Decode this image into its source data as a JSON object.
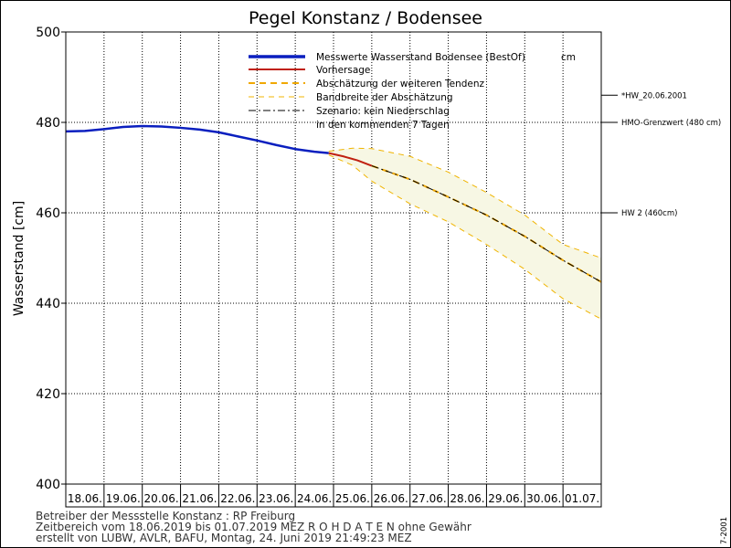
{
  "chart_data": {
    "type": "line",
    "title": "Pegel Konstanz / Bodensee",
    "xlabel": "",
    "ylabel": "Wasserstand [cm]",
    "ylim": [
      400,
      500
    ],
    "yticks": [
      400,
      420,
      440,
      460,
      480,
      500
    ],
    "xlim": [
      "2019-06-18 00:00",
      "2019-07-02 00:00"
    ],
    "x_tick_labels": [
      "18.06.",
      "19.06.",
      "20.06.",
      "21.06.",
      "22.06.",
      "23.06.",
      "24.06.",
      "25.06.",
      "26.06.",
      "27.06.",
      "28.06.",
      "29.06.",
      "30.06.",
      "01.07."
    ],
    "grid": true,
    "legend_placement": "top-center",
    "legend": [
      "Messwerte Wasserstand Bodensee  (BestOf)",
      "Vorhersage",
      "Abschätzung der weiteren Tendenz",
      "Bandbreite der Abschätzung",
      "Szenario: kein Niederschlag",
      "in den kommenden 7 Tagen"
    ],
    "legend_unit": "cm",
    "series": [
      {
        "name": "Messwerte Wasserstand Bodensee  (BestOf)",
        "color": "#0a1fbf",
        "x": [
          "2019-06-18 00:00",
          "2019-06-18 12:00",
          "2019-06-19 00:00",
          "2019-06-19 12:00",
          "2019-06-20 00:00",
          "2019-06-20 12:00",
          "2019-06-21 00:00",
          "2019-06-21 12:00",
          "2019-06-22 00:00",
          "2019-06-22 12:00",
          "2019-06-23 00:00",
          "2019-06-23 12:00",
          "2019-06-24 00:00",
          "2019-06-24 12:00",
          "2019-06-24 21:00"
        ],
        "y": [
          478.0,
          478.1,
          478.5,
          479.0,
          479.2,
          479.1,
          478.8,
          478.4,
          477.8,
          476.9,
          476.0,
          475.0,
          474.1,
          473.5,
          473.2
        ]
      },
      {
        "name": "Vorhersage",
        "color": "#c02010",
        "x": [
          "2019-06-24 21:00",
          "2019-06-25 06:00",
          "2019-06-25 15:00",
          "2019-06-26 00:00"
        ],
        "y": [
          473.2,
          472.5,
          471.6,
          470.4
        ]
      },
      {
        "name": "Abschätzung der weiteren Tendenz",
        "color": "#f0a800",
        "x": [
          "2019-06-26 00:00",
          "2019-06-27 00:00",
          "2019-06-28 00:00",
          "2019-06-29 00:00",
          "2019-06-30 00:00",
          "2019-07-01 00:00",
          "2019-07-02 00:00"
        ],
        "y": [
          470.4,
          467.4,
          463.5,
          459.5,
          454.8,
          449.5,
          444.7
        ]
      },
      {
        "name": "Szenario: kein Niederschlag",
        "color": "#000000",
        "x": [
          "2019-06-26 00:00",
          "2019-06-27 00:00",
          "2019-06-28 00:00",
          "2019-06-29 00:00",
          "2019-06-30 00:00",
          "2019-07-01 00:00",
          "2019-07-02 00:00"
        ],
        "y": [
          470.4,
          467.4,
          463.5,
          459.5,
          454.8,
          449.5,
          444.7
        ]
      }
    ],
    "band": {
      "name": "Bandbreite der Abschätzung",
      "color": "#f0b400",
      "fill": "#f7f7e4",
      "x": [
        "2019-06-24 21:00",
        "2019-06-25 12:00",
        "2019-06-26 00:00",
        "2019-06-27 00:00",
        "2019-06-28 00:00",
        "2019-06-29 00:00",
        "2019-06-30 00:00",
        "2019-07-01 00:00",
        "2019-07-02 00:00"
      ],
      "upper": [
        473.6,
        474.3,
        474.2,
        472.5,
        469.0,
        464.5,
        459.5,
        453.0,
        450.0
      ],
      "lower": [
        472.8,
        470.5,
        467.0,
        462.0,
        458.0,
        453.0,
        447.5,
        441.0,
        436.5
      ]
    },
    "reference_lines": [
      {
        "value": 486,
        "label": "*HW_20.06.2001"
      },
      {
        "value": 480,
        "label": "HMO-Grenzwert (480 cm)"
      },
      {
        "value": 460,
        "label": "HW 2 (460cm)"
      }
    ]
  },
  "footer": {
    "operator": "Betreiber der Messstelle Konstanz : RP Freiburg",
    "range": "Zeitbereich vom 18.06.2019 bis 01.07.2019    MEZ    R O H D A T E N ohne Gewähr",
    "created": "erstellt von LUBW, AVLR, BAFU, Montag, 24. Juni 2019 21:49:23 MEZ",
    "corner": "7-2001"
  }
}
